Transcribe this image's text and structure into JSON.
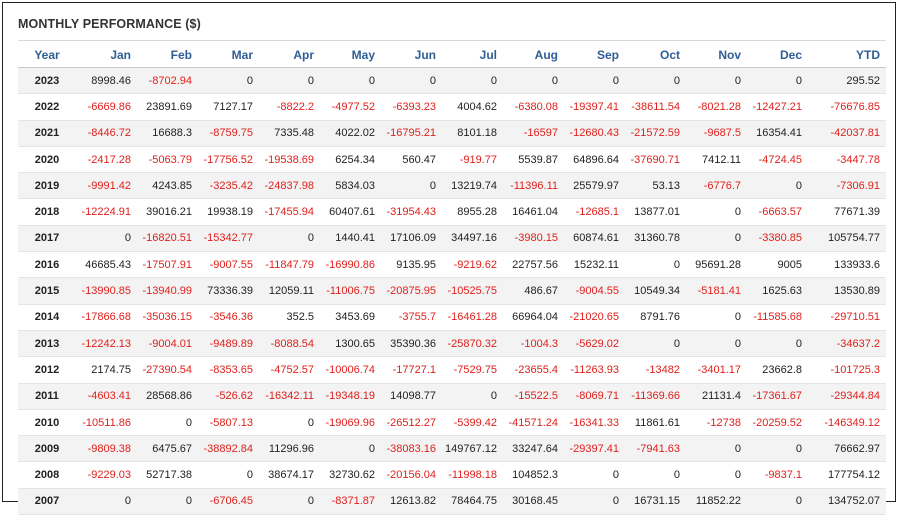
{
  "title": "MONTHLY PERFORMANCE ($)",
  "colors": {
    "negative": "#e0201c",
    "positive": "#222222",
    "header": "#2f5f96"
  },
  "chart_data": {
    "type": "table",
    "title": "MONTHLY PERFORMANCE ($)",
    "columns": [
      "Year",
      "Jan",
      "Feb",
      "Mar",
      "Apr",
      "May",
      "Jun",
      "Jul",
      "Aug",
      "Sep",
      "Oct",
      "Nov",
      "Dec",
      "YTD"
    ],
    "rows": [
      {
        "year": "2023",
        "values": [
          "8998.46",
          "-8702.94",
          "0",
          "0",
          "0",
          "0",
          "0",
          "0",
          "0",
          "0",
          "0",
          "0",
          "295.52"
        ]
      },
      {
        "year": "2022",
        "values": [
          "-6669.86",
          "23891.69",
          "7127.17",
          "-8822.2",
          "-4977.52",
          "-6393.23",
          "4004.62",
          "-6380.08",
          "-19397.41",
          "-38611.54",
          "-8021.28",
          "-12427.21",
          "-76676.85"
        ]
      },
      {
        "year": "2021",
        "values": [
          "-8446.72",
          "16688.3",
          "-8759.75",
          "7335.48",
          "4022.02",
          "-16795.21",
          "8101.18",
          "-16597",
          "-12680.43",
          "-21572.59",
          "-9687.5",
          "16354.41",
          "-42037.81"
        ]
      },
      {
        "year": "2020",
        "values": [
          "-2417.28",
          "-5063.79",
          "-17756.52",
          "-19538.69",
          "6254.34",
          "560.47",
          "-919.77",
          "5539.87",
          "64896.64",
          "-37690.71",
          "7412.11",
          "-4724.45",
          "-3447.78"
        ]
      },
      {
        "year": "2019",
        "values": [
          "-9991.42",
          "4243.85",
          "-3235.42",
          "-24837.98",
          "5834.03",
          "0",
          "13219.74",
          "-11396.11",
          "25579.97",
          "53.13",
          "-6776.7",
          "0",
          "-7306.91"
        ]
      },
      {
        "year": "2018",
        "values": [
          "-12224.91",
          "39016.21",
          "19938.19",
          "-17455.94",
          "60407.61",
          "-31954.43",
          "8955.28",
          "16461.04",
          "-12685.1",
          "13877.01",
          "0",
          "-6663.57",
          "77671.39"
        ]
      },
      {
        "year": "2017",
        "values": [
          "0",
          "-16820.51",
          "-15342.77",
          "0",
          "1440.41",
          "17106.09",
          "34497.16",
          "-3980.15",
          "60874.61",
          "31360.78",
          "0",
          "-3380.85",
          "105754.77"
        ]
      },
      {
        "year": "2016",
        "values": [
          "46685.43",
          "-17507.91",
          "-9007.55",
          "-11847.79",
          "-16990.86",
          "9135.95",
          "-9219.62",
          "22757.56",
          "15232.11",
          "0",
          "95691.28",
          "9005",
          "133933.6"
        ]
      },
      {
        "year": "2015",
        "values": [
          "-13990.85",
          "-13940.99",
          "73336.39",
          "12059.11",
          "-11006.75",
          "-20875.95",
          "-10525.75",
          "486.67",
          "-9004.55",
          "10549.34",
          "-5181.41",
          "1625.63",
          "13530.89"
        ]
      },
      {
        "year": "2014",
        "values": [
          "-17866.68",
          "-35036.15",
          "-3546.36",
          "352.5",
          "3453.69",
          "-3755.7",
          "-16461.28",
          "66964.04",
          "-21020.65",
          "8791.76",
          "0",
          "-11585.68",
          "-29710.51"
        ]
      },
      {
        "year": "2013",
        "values": [
          "-12242.13",
          "-9004.01",
          "-9489.89",
          "-8088.54",
          "1300.65",
          "35390.36",
          "-25870.32",
          "-1004.3",
          "-5629.02",
          "0",
          "0",
          "0",
          "-34637.2"
        ]
      },
      {
        "year": "2012",
        "values": [
          "2174.75",
          "-27390.54",
          "-8353.65",
          "-4752.57",
          "-10006.74",
          "-17727.1",
          "-7529.75",
          "-23655.4",
          "-11263.93",
          "-13482",
          "-3401.17",
          "23662.8",
          "-101725.3"
        ]
      },
      {
        "year": "2011",
        "values": [
          "-4603.41",
          "28568.86",
          "-526.62",
          "-16342.11",
          "-19348.19",
          "14098.77",
          "0",
          "-15522.5",
          "-8069.71",
          "-11369.66",
          "21131.4",
          "-17361.67",
          "-29344.84"
        ]
      },
      {
        "year": "2010",
        "values": [
          "-10511.86",
          "0",
          "-5807.13",
          "0",
          "-19069.96",
          "-26512.27",
          "-5399.42",
          "-41571.24",
          "-16341.33",
          "11861.61",
          "-12738",
          "-20259.52",
          "-146349.12"
        ]
      },
      {
        "year": "2009",
        "values": [
          "-9809.38",
          "6475.67",
          "-38892.84",
          "11296.96",
          "0",
          "-38083.16",
          "149767.12",
          "33247.64",
          "-29397.41",
          "-7941.63",
          "0",
          "0",
          "76662.97"
        ]
      },
      {
        "year": "2008",
        "values": [
          "-9229.03",
          "52717.38",
          "0",
          "38674.17",
          "32730.62",
          "-20156.04",
          "-11998.18",
          "104852.3",
          "0",
          "0",
          "0",
          "-9837.1",
          "177754.12"
        ]
      },
      {
        "year": "2007",
        "values": [
          "0",
          "0",
          "-6706.45",
          "0",
          "-8371.87",
          "12613.82",
          "78464.75",
          "30168.45",
          "0",
          "16731.15",
          "11852.22",
          "0",
          "134752.07"
        ]
      }
    ]
  }
}
